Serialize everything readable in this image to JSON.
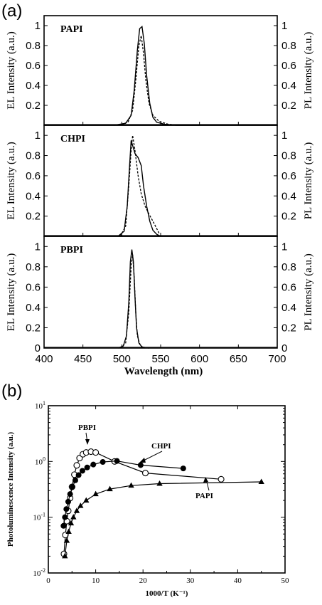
{
  "labels": {
    "a": "(a)",
    "b": "(b)"
  },
  "chart_data": [
    {
      "type": "line",
      "panel": "(a)",
      "xlabel": "Wavelength (nm)",
      "xlim": [
        400,
        700
      ],
      "x_ticks": [
        "400",
        "450",
        "500",
        "550",
        "600",
        "650",
        "700"
      ],
      "ylabel_left": "EL Intensity (a.u.)",
      "ylabel_right": "PL Intensity (a.u.)",
      "ylim": [
        0,
        1.1
      ],
      "y_ticks_top": [
        "1",
        "0.8",
        "0.6",
        "0.4",
        "0.2"
      ],
      "y_ticks_bottom": [
        "1",
        "0.8",
        "0.6",
        "0.4",
        "0.2",
        "0"
      ],
      "subplots": [
        {
          "name": "PAPI",
          "el": {
            "style": "solid",
            "x": [
              490,
              505,
              512,
              516,
              520,
              523,
              526,
              529,
              532,
              536,
              540,
              545,
              555,
              570,
              600
            ],
            "y": [
              0,
              0.02,
              0.1,
              0.35,
              0.75,
              0.97,
              0.99,
              0.82,
              0.5,
              0.22,
              0.08,
              0.03,
              0.01,
              0,
              0
            ]
          },
          "pl": {
            "style": "dashed",
            "x": [
              495,
              508,
              514,
              518,
              522,
              525,
              528,
              531,
              535,
              540,
              548,
              560,
              575
            ],
            "y": [
              0,
              0.03,
              0.15,
              0.45,
              0.8,
              0.9,
              0.72,
              0.45,
              0.22,
              0.1,
              0.04,
              0.01,
              0
            ]
          }
        },
        {
          "name": "CHPI",
          "el": {
            "style": "solid",
            "x": [
              495,
              503,
              507,
              510,
              512,
              514,
              517,
              521,
              525,
              528,
              532,
              536,
              540,
              545,
              550
            ],
            "y": [
              0,
              0.05,
              0.3,
              0.7,
              0.95,
              0.9,
              0.82,
              0.78,
              0.7,
              0.5,
              0.3,
              0.15,
              0.06,
              0.02,
              0
            ]
          },
          "pl": {
            "style": "dashed",
            "x": [
              498,
              505,
              509,
              512,
              514,
              517,
              521,
              525,
              530,
              535,
              540,
              548
            ],
            "y": [
              0,
              0.1,
              0.5,
              0.85,
              1.0,
              0.85,
              0.6,
              0.42,
              0.3,
              0.22,
              0.15,
              0.03
            ]
          }
        },
        {
          "name": "PBPI",
          "el": {
            "style": "solid",
            "x": [
              495,
              502,
              506,
              509,
              511,
              513,
              515,
              517,
              519,
              522,
              526,
              535
            ],
            "y": [
              0,
              0.02,
              0.12,
              0.45,
              0.85,
              0.97,
              0.85,
              0.5,
              0.2,
              0.05,
              0.01,
              0
            ]
          },
          "pl": {
            "style": "dashed",
            "x": [
              498,
              505,
              509,
              512,
              514,
              516,
              518,
              520,
              524,
              530
            ],
            "y": [
              0,
              0.05,
              0.35,
              0.8,
              0.92,
              0.7,
              0.35,
              0.12,
              0.02,
              0
            ]
          }
        }
      ]
    },
    {
      "type": "line",
      "panel": "(b)",
      "xlabel": "1000/T (K⁻¹)",
      "ylabel": "Photoluminescence Intensity (a.u.)",
      "xlim": [
        0,
        50
      ],
      "ylim": [
        0.01,
        10
      ],
      "yscale": "log",
      "x_ticks": [
        "0",
        "10",
        "20",
        "30",
        "40",
        "50"
      ],
      "y_ticks": [
        {
          "base": "10",
          "exp": "1",
          "value": 10
        },
        {
          "base": "10",
          "exp": "0",
          "value": 1
        },
        {
          "base": "10",
          "exp": "-1",
          "value": 0.1
        },
        {
          "base": "10",
          "exp": "-2",
          "value": 0.01
        }
      ],
      "series": [
        {
          "name": "PBPI",
          "marker": "open-circle",
          "x": [
            3.3,
            3.6,
            3.9,
            4.2,
            4.6,
            5.0,
            5.5,
            6.0,
            6.6,
            7.3,
            8.0,
            9.0,
            10.0,
            14.0,
            20.5,
            36.5
          ],
          "y": [
            0.022,
            0.048,
            0.085,
            0.13,
            0.22,
            0.35,
            0.58,
            0.85,
            1.15,
            1.35,
            1.45,
            1.5,
            1.45,
            1.0,
            0.62,
            0.48
          ]
        },
        {
          "name": "CHPI",
          "marker": "filled-circle",
          "x": [
            3.2,
            3.5,
            3.8,
            4.2,
            4.6,
            5.1,
            5.7,
            6.4,
            7.2,
            8.2,
            9.5,
            11.5,
            14.5,
            19.5,
            28.5
          ],
          "y": [
            0.07,
            0.1,
            0.14,
            0.19,
            0.26,
            0.35,
            0.46,
            0.57,
            0.68,
            0.78,
            0.88,
            0.98,
            1.02,
            0.86,
            0.75
          ]
        },
        {
          "name": "PAPI",
          "marker": "filled-triangle",
          "x": [
            3.5,
            3.9,
            4.3,
            4.8,
            5.3,
            6.0,
            6.8,
            8.0,
            10.0,
            13.0,
            17.5,
            23.5,
            45.0
          ],
          "y": [
            0.02,
            0.038,
            0.055,
            0.078,
            0.1,
            0.13,
            0.16,
            0.2,
            0.26,
            0.32,
            0.37,
            0.4,
            0.43
          ]
        }
      ],
      "annotations": [
        "PBPI",
        "CHPI",
        "PAPI"
      ]
    }
  ]
}
